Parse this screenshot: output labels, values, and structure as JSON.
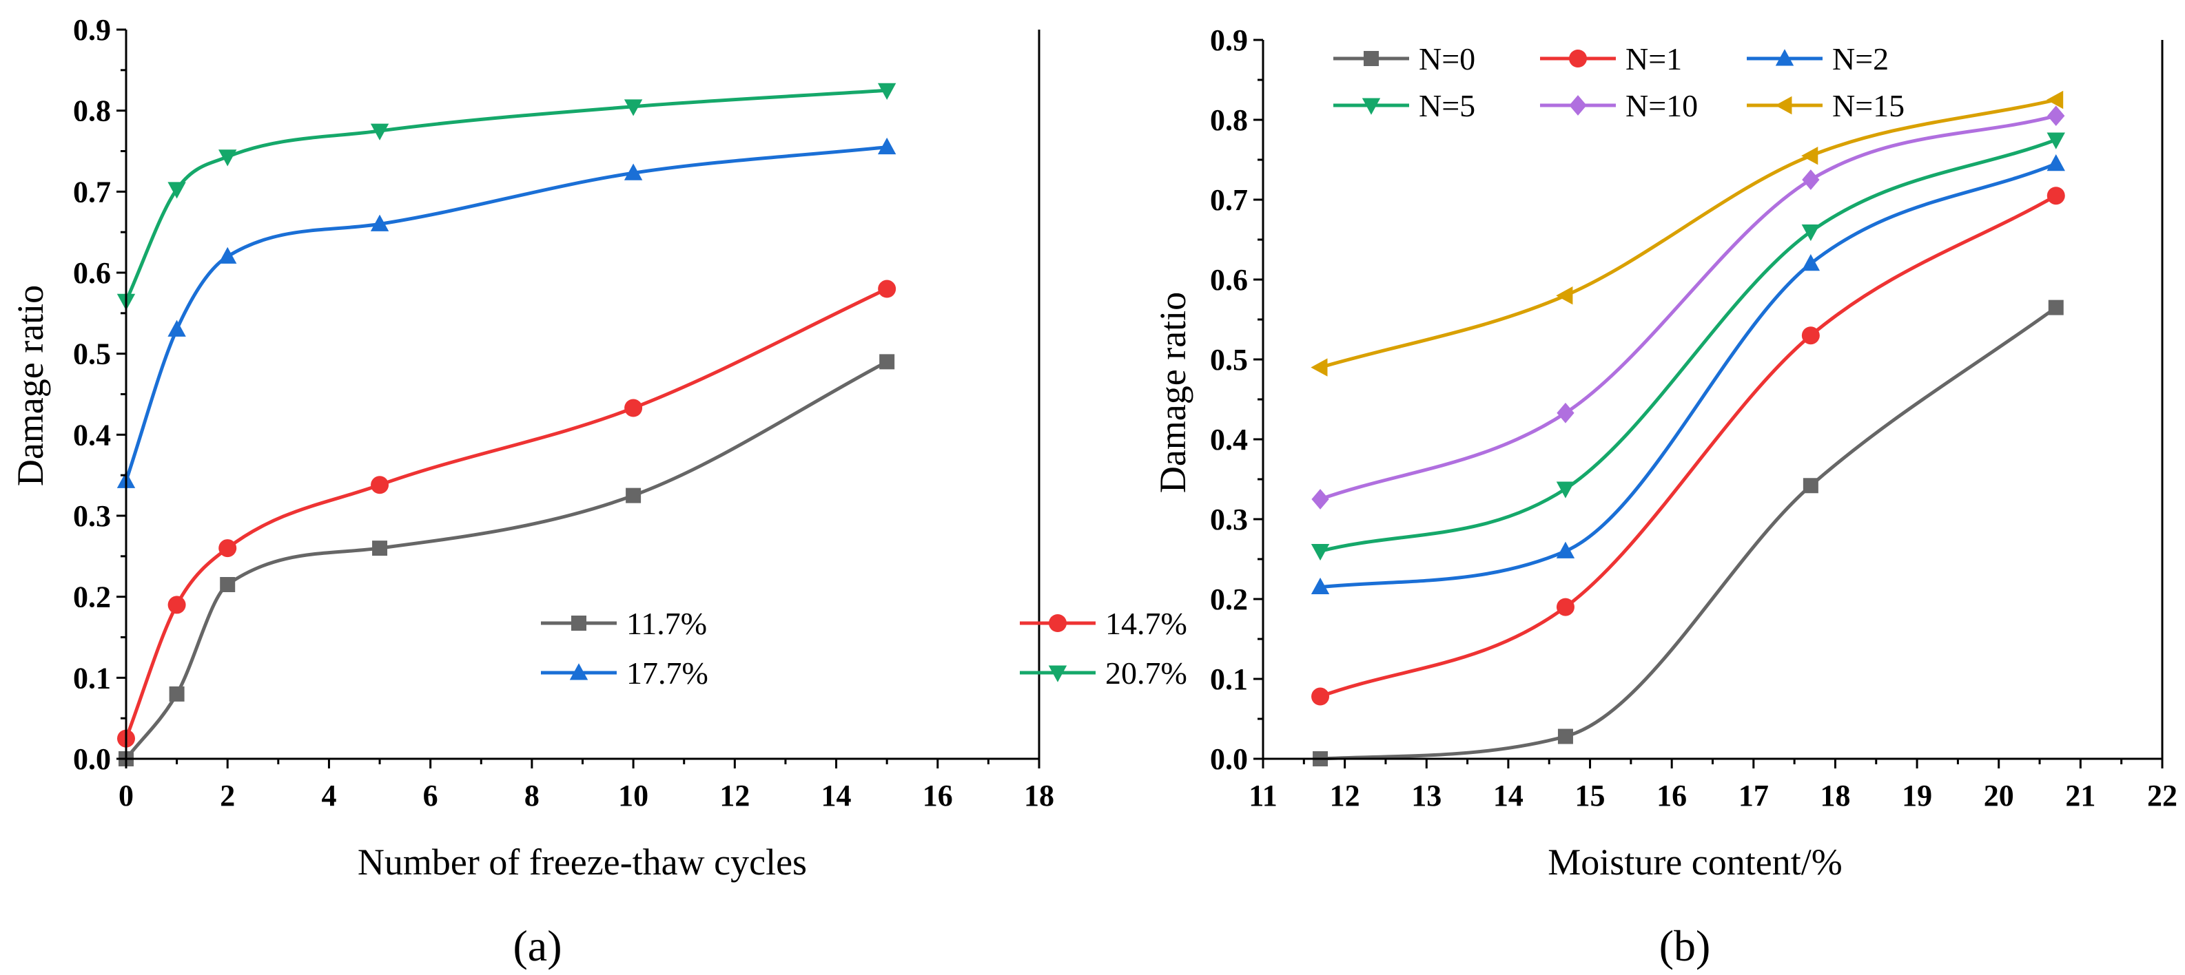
{
  "chart_data": [
    {
      "type": "scatter",
      "panel": "(a)",
      "xlabel": "Number of freeze-thaw cycles",
      "ylabel": "Damage ratio",
      "xlim": [
        0,
        18
      ],
      "ylim": [
        0,
        0.9
      ],
      "xticks": [
        0,
        2,
        4,
        6,
        8,
        10,
        12,
        14,
        16,
        18
      ],
      "yticks": [
        0.0,
        0.1,
        0.2,
        0.3,
        0.4,
        0.5,
        0.6,
        0.7,
        0.8,
        0.9
      ],
      "x": [
        0,
        1,
        2,
        5,
        10,
        15
      ],
      "legend": {
        "placement": "bottom-right",
        "columns": 2
      },
      "series": [
        {
          "name": "11.7%",
          "label": "11.7%",
          "color": "#666666",
          "marker": "square",
          "values": [
            0.0,
            0.08,
            0.215,
            0.26,
            0.325,
            0.49
          ]
        },
        {
          "name": "14.7%",
          "label": "14.7%",
          "color": "#ee3333",
          "marker": "circle",
          "values": [
            0.025,
            0.19,
            0.26,
            0.338,
            0.433,
            0.58
          ]
        },
        {
          "name": "17.7%",
          "label": "17.7%",
          "color": "#1a6fd6",
          "marker": "triangle-up",
          "values": [
            0.343,
            0.53,
            0.62,
            0.66,
            0.723,
            0.755
          ]
        },
        {
          "name": "20.7%",
          "label": "20.7%",
          "color": "#15a86a",
          "marker": "triangle-down",
          "values": [
            0.565,
            0.703,
            0.743,
            0.775,
            0.805,
            0.825
          ]
        }
      ]
    },
    {
      "type": "scatter",
      "panel": "(b)",
      "xlabel": "Moisture content/%",
      "ylabel": "Damage ratio",
      "xlim": [
        11,
        22
      ],
      "ylim": [
        0,
        0.9
      ],
      "xticks": [
        11,
        12,
        13,
        14,
        15,
        16,
        17,
        18,
        19,
        20,
        21,
        22
      ],
      "yticks": [
        0.0,
        0.1,
        0.2,
        0.3,
        0.4,
        0.5,
        0.6,
        0.7,
        0.8,
        0.9
      ],
      "x": [
        11.7,
        14.7,
        17.7,
        20.7
      ],
      "legend": {
        "placement": "top-left",
        "columns": 3
      },
      "series": [
        {
          "name": "N=0",
          "label": "N=0",
          "color": "#666666",
          "marker": "square",
          "values": [
            0.0,
            0.028,
            0.342,
            0.565
          ]
        },
        {
          "name": "N=1",
          "label": "N=1",
          "color": "#ee3333",
          "marker": "circle",
          "values": [
            0.078,
            0.19,
            0.53,
            0.705
          ]
        },
        {
          "name": "N=2",
          "label": "N=2",
          "color": "#1a6fd6",
          "marker": "triangle-up",
          "values": [
            0.215,
            0.26,
            0.62,
            0.745
          ]
        },
        {
          "name": "N=5",
          "label": "N=5",
          "color": "#15a86a",
          "marker": "triangle-down",
          "values": [
            0.26,
            0.338,
            0.66,
            0.775
          ]
        },
        {
          "name": "N=10",
          "label": "N=10",
          "color": "#b06fdf",
          "marker": "diamond",
          "values": [
            0.325,
            0.433,
            0.725,
            0.805
          ]
        },
        {
          "name": "N=15",
          "label": "N=15",
          "color": "#d9a000",
          "marker": "triangle-left",
          "values": [
            0.49,
            0.58,
            0.755,
            0.825
          ]
        }
      ]
    }
  ]
}
